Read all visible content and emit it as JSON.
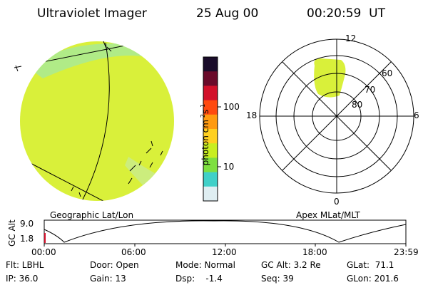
{
  "header": {
    "title": "Ultraviolet Imager",
    "date": "25 Aug 00",
    "time": "00:20:59  UT"
  },
  "left_panel": {
    "caption": "Geographic Lat/Lon",
    "fill_color": "#d9f03a"
  },
  "colorbar": {
    "unit_label": "photon cm",
    "unit_exp1": "-2",
    "unit_mid": "s",
    "unit_exp2": "-1",
    "ticks": [
      "100",
      "10"
    ],
    "colors": [
      "#1a0c2a",
      "#6a0a2a",
      "#d2102a",
      "#ff4a10",
      "#ff9a10",
      "#ffd020",
      "#c8ee20",
      "#7ee040",
      "#40d0c8",
      "#dfeef2"
    ]
  },
  "polar_panel": {
    "caption": "Apex MLat/MLT",
    "mlt_labels": {
      "top": "12",
      "bottom": "0",
      "left": "18",
      "right": "6"
    },
    "lat_labels": [
      "60",
      "70",
      "80"
    ]
  },
  "altitude_plot": {
    "axis_label": "GC Alt",
    "y_ticks": [
      "9.0",
      "1.8"
    ],
    "x_ticks": [
      "00:00",
      "06:00",
      "12:00",
      "18:00",
      "23:59"
    ]
  },
  "footer": {
    "flt": "Flt: LBHL",
    "ip": "IP: 36.0",
    "door": "Door: Open",
    "gain": "Gain: 13",
    "mode": "Mode: Normal",
    "dsp": "Dsp:    -1.4",
    "gc_alt": "GC Alt: 3.2 Re",
    "seq": "Seq: 39",
    "glat": "GLat:  71.1",
    "glon": "GLon: 201.6"
  }
}
